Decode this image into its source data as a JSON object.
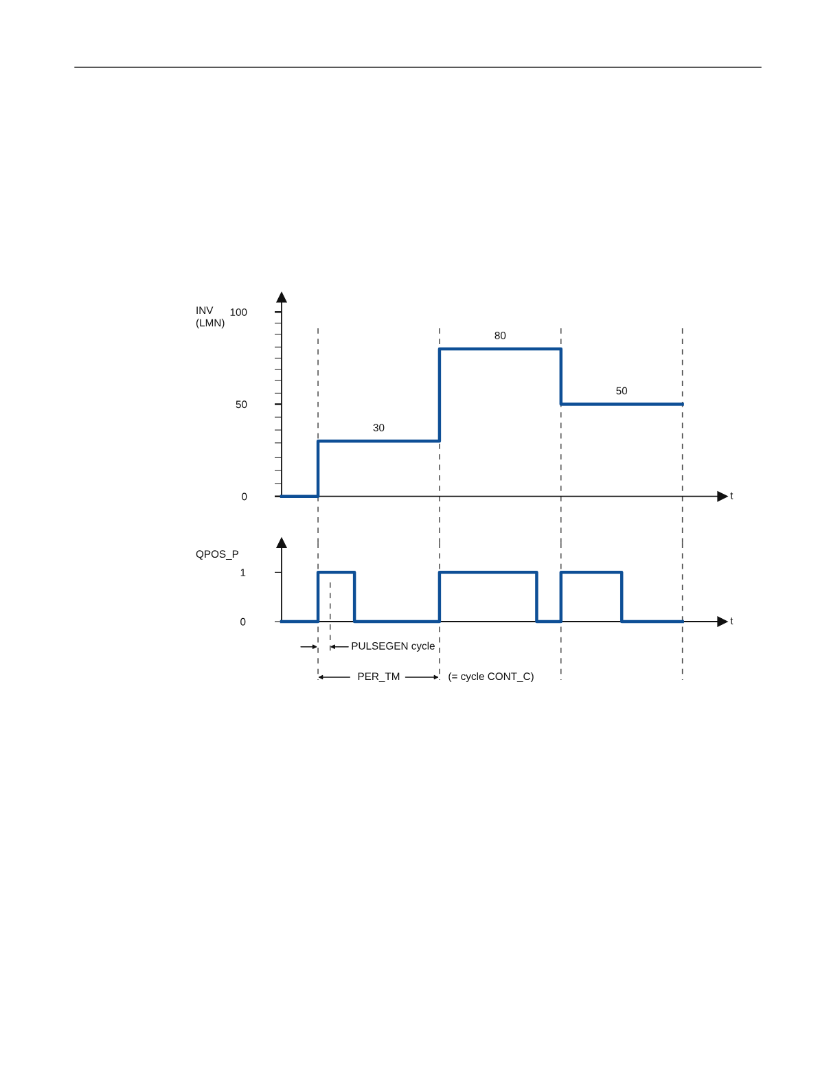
{
  "chart_data": [
    {
      "type": "step",
      "ylabel": "INV\n(LMN)",
      "xlabel": "t",
      "categories": [
        null,
        null,
        null,
        null,
        null,
        null,
        null,
        null,
        null,
        null,
        null,
        null,
        null,
        null,
        null,
        null,
        null,
        null,
        null,
        null,
        null,
        null,
        null,
        null,
        null,
        null,
        null,
        null,
        null,
        null,
        null,
        null,
        null,
        null
      ],
      "values": [
        0,
        0,
        0,
        30,
        30,
        30,
        30,
        30,
        30,
        30,
        30,
        30,
        30,
        80,
        80,
        80,
        80,
        80,
        80,
        80,
        80,
        80,
        80,
        50,
        50,
        50,
        50,
        50,
        50,
        50,
        50,
        50,
        50,
        50
      ],
      "value_labels": [
        null,
        null,
        null,
        null,
        null,
        null,
        null,
        null,
        "30",
        null,
        null,
        null,
        null,
        null,
        null,
        null,
        null,
        null,
        "80",
        null,
        null,
        null,
        null,
        null,
        null,
        null,
        null,
        null,
        "50",
        null,
        null,
        null,
        null,
        null
      ],
      "color": "#0e4f96",
      "ylim": [
        0,
        108
      ],
      "yticks": [
        0,
        {
          "value": 7,
          "label": null
        },
        {
          "value": 14,
          "label": null
        },
        {
          "value": 21,
          "label": null
        },
        {
          "value": 29,
          "label": null
        },
        {
          "value": 36,
          "label": null
        },
        {
          "value": 43,
          "label": null
        },
        50,
        {
          "value": 56,
          "label": null
        },
        {
          "value": 63,
          "label": null
        },
        {
          "value": 69,
          "label": null
        },
        {
          "value": 75,
          "label": null
        },
        {
          "value": 81,
          "label": null
        },
        {
          "value": 88,
          "label": null
        },
        {
          "value": 94,
          "label": null
        },
        100
      ],
      "tick_labels": "y",
      "grid": "x"
    },
    {
      "type": "step",
      "ylabel": "QPOS_P",
      "xlabel": "t",
      "categories": [
        null,
        null,
        null,
        null,
        null,
        null,
        null,
        null,
        null,
        null,
        null,
        null,
        null,
        null,
        null,
        null,
        null,
        null,
        null,
        null,
        null,
        null,
        null,
        null,
        null,
        null,
        null,
        null,
        null,
        null,
        null,
        null,
        null,
        null
      ],
      "values": [
        0,
        0,
        0,
        1,
        1,
        1,
        0,
        0,
        0,
        0,
        0,
        0,
        0,
        1,
        1,
        1,
        1,
        1,
        1,
        1,
        1,
        0,
        0,
        1,
        1,
        1,
        1,
        1,
        0,
        0,
        0,
        0,
        0,
        0
      ],
      "color": "#0e4f96",
      "ylim": [
        0,
        1.6
      ],
      "yticks": [
        0,
        1
      ],
      "tick_labels": "y",
      "grid": "x",
      "annotations": [
        "PULSEGEN cycle",
        "PER_TM",
        "(= cycle CONT_C)"
      ]
    }
  ]
}
